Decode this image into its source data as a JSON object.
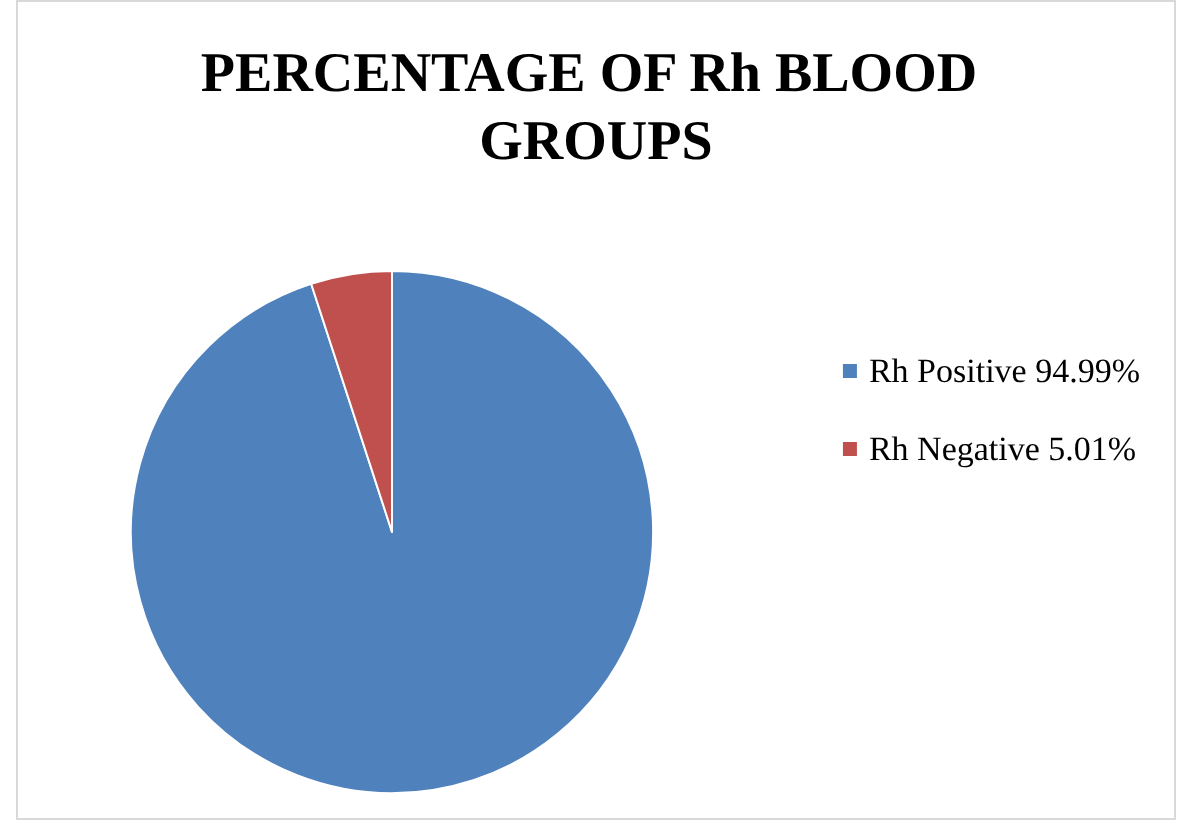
{
  "chart_data": {
    "type": "pie",
    "title": "PERCENTAGE OF Rh BLOOD GROUPS",
    "categories": [
      "Rh Positive 94.99%",
      "Rh Negative 5.01%"
    ],
    "values": [
      94.99,
      5.01
    ],
    "colors": [
      "#4f81bd",
      "#c0504d"
    ],
    "legend": "right"
  }
}
